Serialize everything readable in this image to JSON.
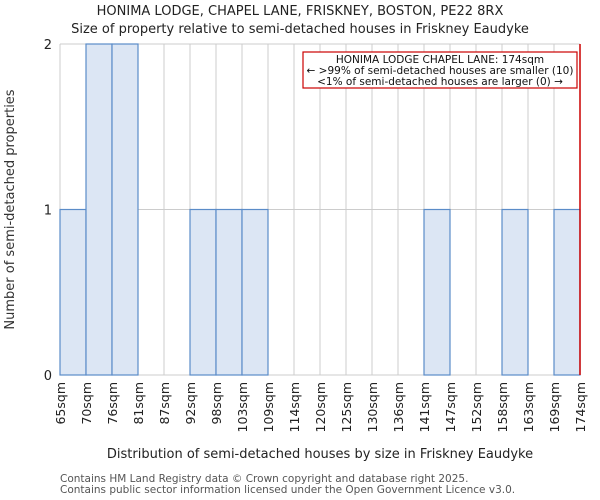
{
  "header": {
    "title": "HONIMA LODGE, CHAPEL LANE, FRISKNEY, BOSTON, PE22 8RX",
    "subtitle": "Size of property relative to semi-detached houses in Friskney Eaudyke"
  },
  "annotation": {
    "line1": "HONIMA LODGE CHAPEL LANE: 174sqm",
    "line2": "← >99% of semi-detached houses are smaller (10)",
    "line3": "<1% of semi-detached houses are larger (0) →"
  },
  "footer": {
    "line1": "Contains HM Land Registry data © Crown copyright and database right 2025.",
    "line2": "Contains public sector information licensed under the Open Government Licence v3.0."
  },
  "colors": {
    "bar_fill": "#dce6f4",
    "bar_edge": "#5b8cc8",
    "grid": "#cccccc",
    "marker": "#cc0000"
  },
  "chart_data": {
    "type": "bar",
    "title": "HONIMA LODGE, CHAPEL LANE, FRISKNEY, BOSTON, PE22 8RX",
    "subtitle": "Size of property relative to semi-detached houses in Friskney Eaudyke",
    "xlabel": "Distribution of semi-detached houses by size in Friskney Eaudyke",
    "ylabel": "Number of semi-detached properties",
    "categories": [
      "65sqm",
      "70sqm",
      "76sqm",
      "81sqm",
      "87sqm",
      "92sqm",
      "98sqm",
      "103sqm",
      "109sqm",
      "114sqm",
      "120sqm",
      "125sqm",
      "130sqm",
      "136sqm",
      "141sqm",
      "147sqm",
      "152sqm",
      "158sqm",
      "163sqm",
      "169sqm",
      "174sqm"
    ],
    "values": [
      1,
      2,
      2,
      0,
      0,
      1,
      1,
      1,
      0,
      0,
      0,
      0,
      0,
      0,
      1,
      0,
      0,
      1,
      0,
      1
    ],
    "yticks": [
      0,
      1,
      2
    ],
    "ylim": [
      0,
      2
    ],
    "grid": true,
    "marker": {
      "value": "174sqm",
      "label": "HONIMA LODGE CHAPEL LANE: 174sqm"
    }
  }
}
